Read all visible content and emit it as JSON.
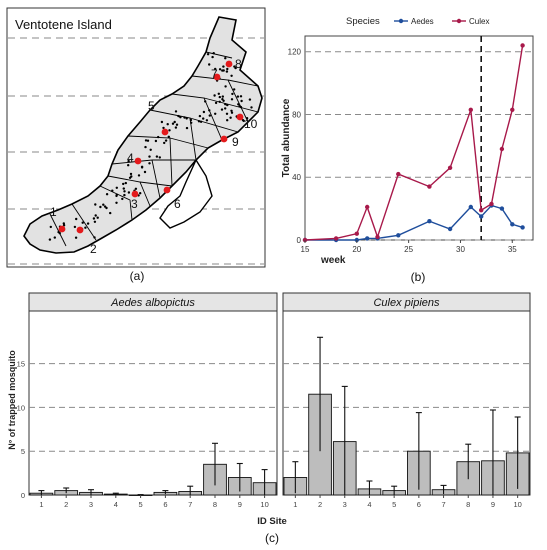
{
  "panel_labels": {
    "a": "(a)",
    "b": "(b)",
    "c": "(c)"
  },
  "map": {
    "title": "Ventotene Island",
    "site_labels": [
      "1",
      "2",
      "3",
      "4",
      "5",
      "6",
      "7",
      "8",
      "9",
      "10"
    ],
    "colors": {
      "land": "#e2e2e2",
      "coast": "#000000",
      "site": "#e41a1c",
      "points": "#000000",
      "dashes": "#888888"
    }
  },
  "chart_data": [
    {
      "type": "line",
      "legend_title": "Species",
      "legend_position": "top",
      "xlabel": "week",
      "ylabel": "Total abundance",
      "xlim": [
        15,
        37
      ],
      "ylim": [
        0,
        130
      ],
      "xticks": [
        15,
        20,
        25,
        30,
        35
      ],
      "yticks": [
        0,
        40,
        80,
        120
      ],
      "grid": "horizontal dashed",
      "vline": 32,
      "series": [
        {
          "name": "Aedes",
          "color": "#1f4e9c",
          "x": [
            15,
            18,
            20,
            21,
            22,
            24,
            27,
            29,
            31,
            32,
            33,
            34,
            35,
            36
          ],
          "y": [
            0,
            0,
            0,
            1,
            1,
            3,
            12,
            7,
            21,
            15,
            22,
            20,
            10,
            8
          ]
        },
        {
          "name": "Culex",
          "color": "#a8194a",
          "x": [
            15,
            18,
            20,
            21,
            22,
            24,
            27,
            29,
            31,
            32,
            33,
            34,
            35,
            36
          ],
          "y": [
            0,
            1,
            4,
            21,
            2,
            42,
            34,
            46,
            83,
            19,
            23,
            58,
            83,
            124
          ]
        }
      ]
    },
    {
      "type": "bar",
      "ylabel": "N° of trapped mosquito",
      "xlabel": "ID Site",
      "categories": [
        "1",
        "2",
        "3",
        "4",
        "5",
        "6",
        "7",
        "8",
        "9",
        "10"
      ],
      "ylim": [
        0,
        21
      ],
      "yticks": [
        0,
        5,
        10,
        15
      ],
      "grid": "horizontal dashed",
      "panels": [
        {
          "title": "Aedes albopictus",
          "values": [
            0.2,
            0.5,
            0.3,
            0.1,
            0.0,
            0.3,
            0.4,
            3.5,
            2.0,
            1.4
          ],
          "errors": [
            0.3,
            0.3,
            0.3,
            0.1,
            0.05,
            0.2,
            0.6,
            2.4,
            1.6,
            1.5
          ]
        },
        {
          "title": "Culex pipiens",
          "values": [
            2.0,
            11.5,
            6.1,
            0.7,
            0.5,
            5.0,
            0.6,
            3.8,
            3.9,
            4.8
          ],
          "errors": [
            1.8,
            6.5,
            6.3,
            0.9,
            0.5,
            4.4,
            0.5,
            2.0,
            5.8,
            4.1
          ]
        }
      ],
      "bar_color": "#bdbdbd"
    }
  ]
}
